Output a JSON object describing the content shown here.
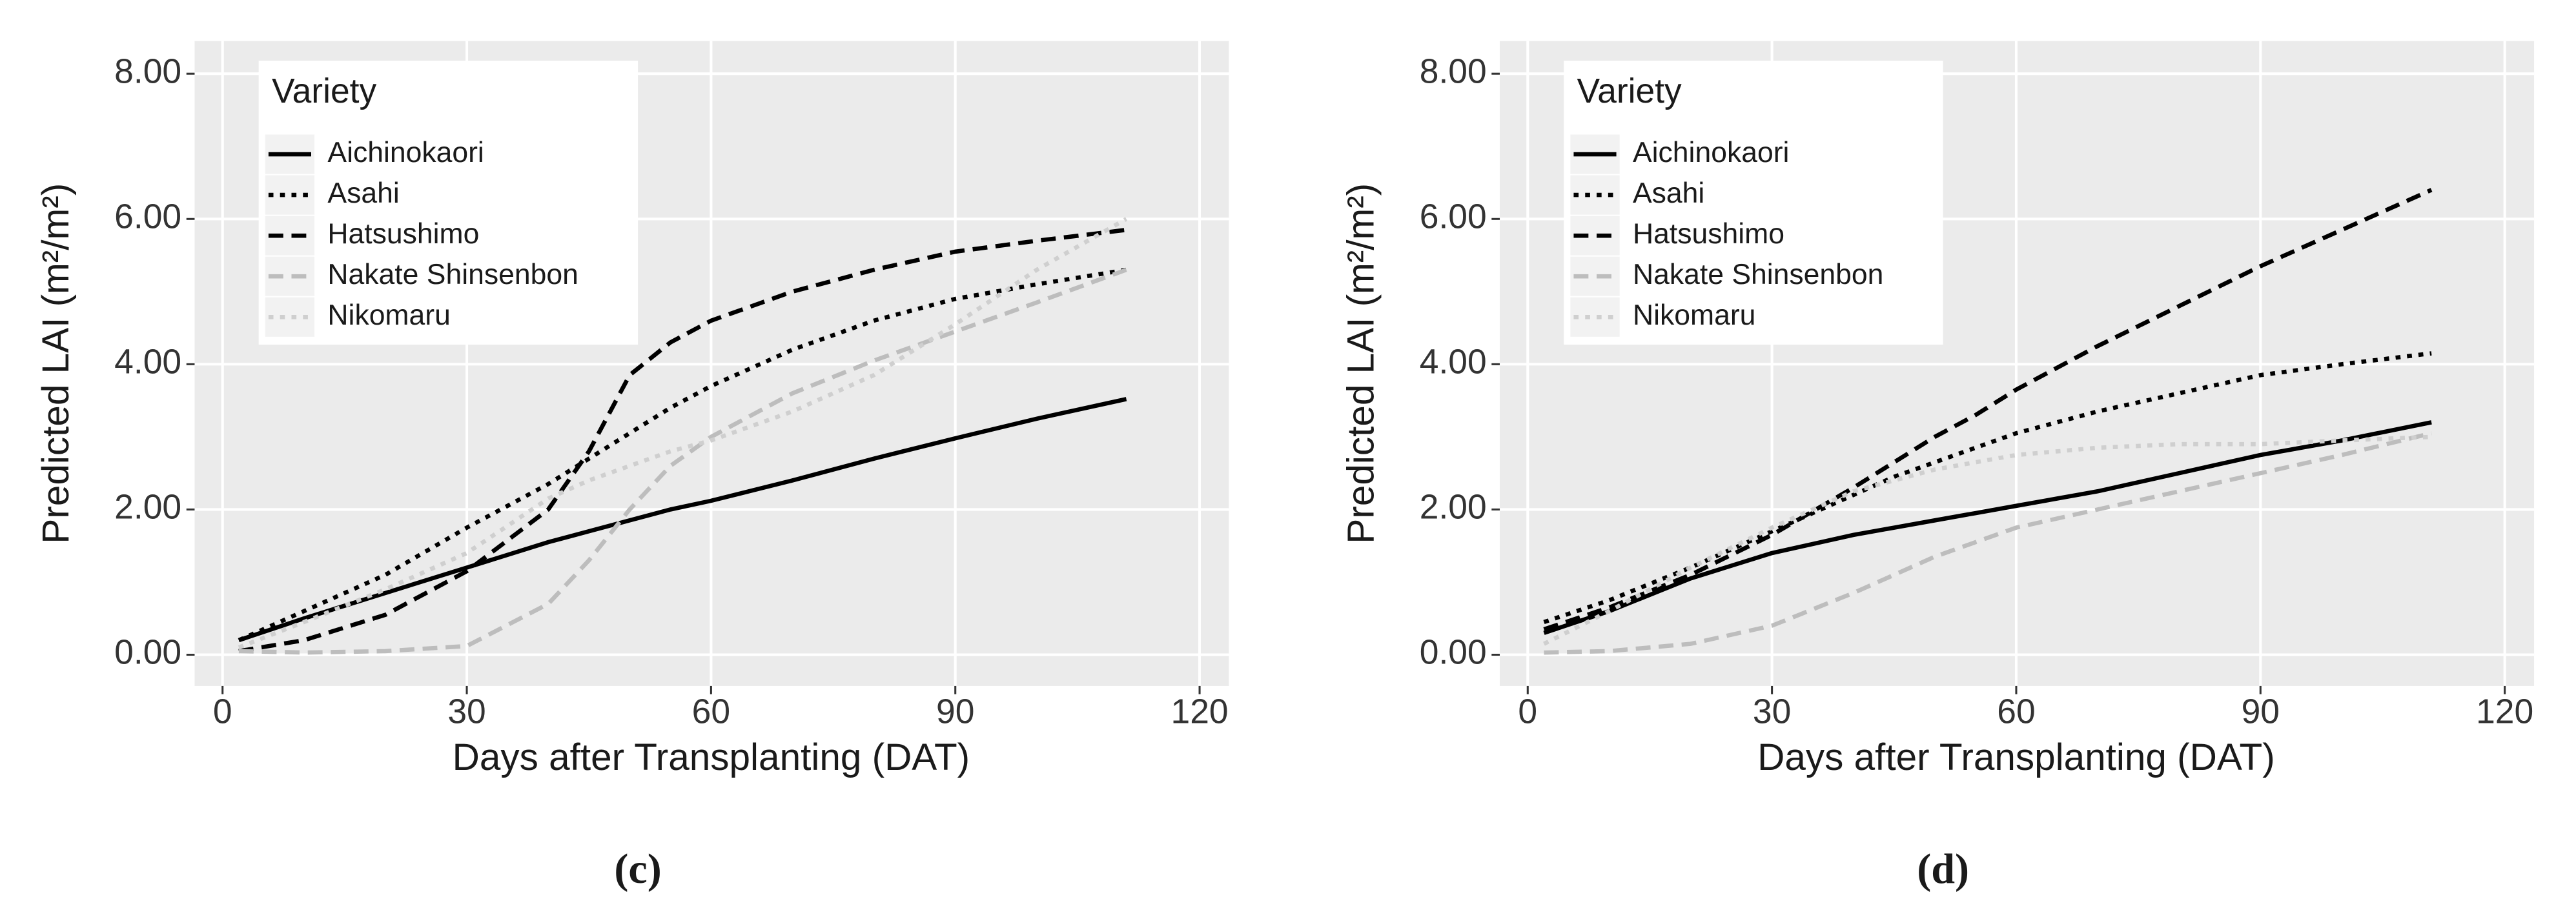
{
  "chart_data": [
    {
      "type": "line",
      "caption": "(c)",
      "xlabel": "Days after Transplanting (DAT)",
      "ylabel": "Predicted LAI (m²/m²)",
      "legend_title": "Variety",
      "legend": "top-left",
      "grid": true,
      "xlim": [
        -3.43,
        123.6
      ],
      "ylim": [
        -0.43,
        8.45
      ],
      "xticks": [
        0,
        30,
        60,
        90,
        120
      ],
      "yticks": [
        {
          "value": 0,
          "label": "0.00"
        },
        {
          "value": 2,
          "label": "2.00"
        },
        {
          "value": 4,
          "label": "4.00"
        },
        {
          "value": 6,
          "label": "6.00"
        },
        {
          "value": 8,
          "label": "8.00"
        }
      ],
      "x": [
        2,
        10,
        20,
        30,
        40,
        45,
        50,
        55,
        60,
        70,
        80,
        90,
        100,
        111
      ],
      "series": [
        {
          "name": "Aichinokaori",
          "color": "#000000",
          "linetype": "solid",
          "values": [
            0.2,
            0.5,
            0.85,
            1.2,
            1.55,
            1.7,
            1.85,
            2.0,
            2.12,
            2.4,
            2.7,
            2.98,
            3.25,
            3.52
          ]
        },
        {
          "name": "Asahi",
          "color": "#000000",
          "linetype": "dotted",
          "values": [
            0.2,
            0.6,
            1.1,
            1.75,
            2.35,
            2.7,
            3.05,
            3.4,
            3.7,
            4.2,
            4.6,
            4.9,
            5.1,
            5.3
          ]
        },
        {
          "name": "Hatsushimo",
          "color": "#000000",
          "linetype": "dashed",
          "values": [
            0.05,
            0.2,
            0.55,
            1.15,
            2.0,
            2.8,
            3.85,
            4.3,
            4.6,
            5.0,
            5.3,
            5.55,
            5.7,
            5.85
          ]
        },
        {
          "name": "Nakate Shinsenbon",
          "color": "#bdbdbd",
          "linetype": "dashed",
          "values": [
            0.05,
            0.03,
            0.05,
            0.12,
            0.7,
            1.3,
            2.0,
            2.6,
            3.0,
            3.6,
            4.05,
            4.45,
            4.85,
            5.3
          ]
        },
        {
          "name": "Nikomaru",
          "color": "#cfcfcf",
          "linetype": "dotted",
          "values": [
            0.1,
            0.45,
            0.9,
            1.4,
            2.15,
            2.4,
            2.6,
            2.8,
            2.95,
            3.35,
            3.85,
            4.55,
            5.3,
            6.0
          ]
        }
      ]
    },
    {
      "type": "line",
      "caption": "(d)",
      "xlabel": "Days after Transplanting (DAT)",
      "ylabel": "Predicted LAI (m²/m²)",
      "legend_title": "Variety",
      "legend": "top-left",
      "grid": true,
      "xlim": [
        -3.43,
        123.6
      ],
      "ylim": [
        -0.43,
        8.45
      ],
      "xticks": [
        0,
        30,
        60,
        90,
        120
      ],
      "yticks": [
        {
          "value": 0,
          "label": "0.00"
        },
        {
          "value": 2,
          "label": "2.00"
        },
        {
          "value": 4,
          "label": "4.00"
        },
        {
          "value": 6,
          "label": "6.00"
        },
        {
          "value": 8,
          "label": "8.00"
        }
      ],
      "x": [
        2,
        10,
        20,
        30,
        40,
        45,
        50,
        55,
        60,
        70,
        80,
        90,
        100,
        111
      ],
      "series": [
        {
          "name": "Aichinokaori",
          "color": "#000000",
          "linetype": "solid",
          "values": [
            0.3,
            0.6,
            1.05,
            1.4,
            1.65,
            1.75,
            1.85,
            1.95,
            2.05,
            2.25,
            2.5,
            2.75,
            2.95,
            3.2
          ]
        },
        {
          "name": "Asahi",
          "color": "#000000",
          "linetype": "dotted",
          "values": [
            0.45,
            0.75,
            1.2,
            1.7,
            2.2,
            2.45,
            2.65,
            2.85,
            3.05,
            3.35,
            3.6,
            3.85,
            4.0,
            4.15
          ]
        },
        {
          "name": "Hatsushimo",
          "color": "#000000",
          "linetype": "dashed",
          "values": [
            0.35,
            0.65,
            1.1,
            1.65,
            2.3,
            2.65,
            3.0,
            3.3,
            3.65,
            4.25,
            4.8,
            5.35,
            5.85,
            6.4
          ]
        },
        {
          "name": "Nakate Shinsenbon",
          "color": "#bdbdbd",
          "linetype": "dashed",
          "values": [
            0.03,
            0.05,
            0.15,
            0.4,
            0.85,
            1.1,
            1.35,
            1.55,
            1.75,
            2.0,
            2.25,
            2.5,
            2.75,
            3.05
          ]
        },
        {
          "name": "Nikomaru",
          "color": "#cfcfcf",
          "linetype": "dotted",
          "values": [
            0.15,
            0.6,
            1.2,
            1.75,
            2.25,
            2.4,
            2.55,
            2.65,
            2.75,
            2.85,
            2.9,
            2.9,
            2.95,
            3.0
          ]
        }
      ]
    }
  ]
}
